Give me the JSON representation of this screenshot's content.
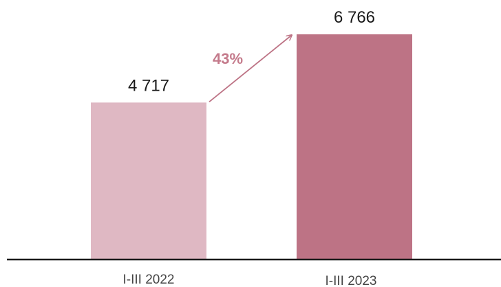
{
  "chart_data": {
    "type": "bar",
    "categories": [
      "I-III 2022",
      "I-III 2023"
    ],
    "values": [
      4717,
      6766
    ],
    "value_labels": [
      "4 717",
      "6 766"
    ],
    "ylim": [
      0,
      6766
    ],
    "grid": false,
    "annotation": {
      "text": "43%",
      "from_category": "I-III 2022",
      "to_category": "I-III 2023"
    }
  },
  "colors": {
    "bar_2022": "#dfb8c3",
    "bar_2023": "#bd7385",
    "arrow": "#bd7385",
    "annotation_text": "#c47a8b",
    "baseline": "#1a1a1a"
  }
}
